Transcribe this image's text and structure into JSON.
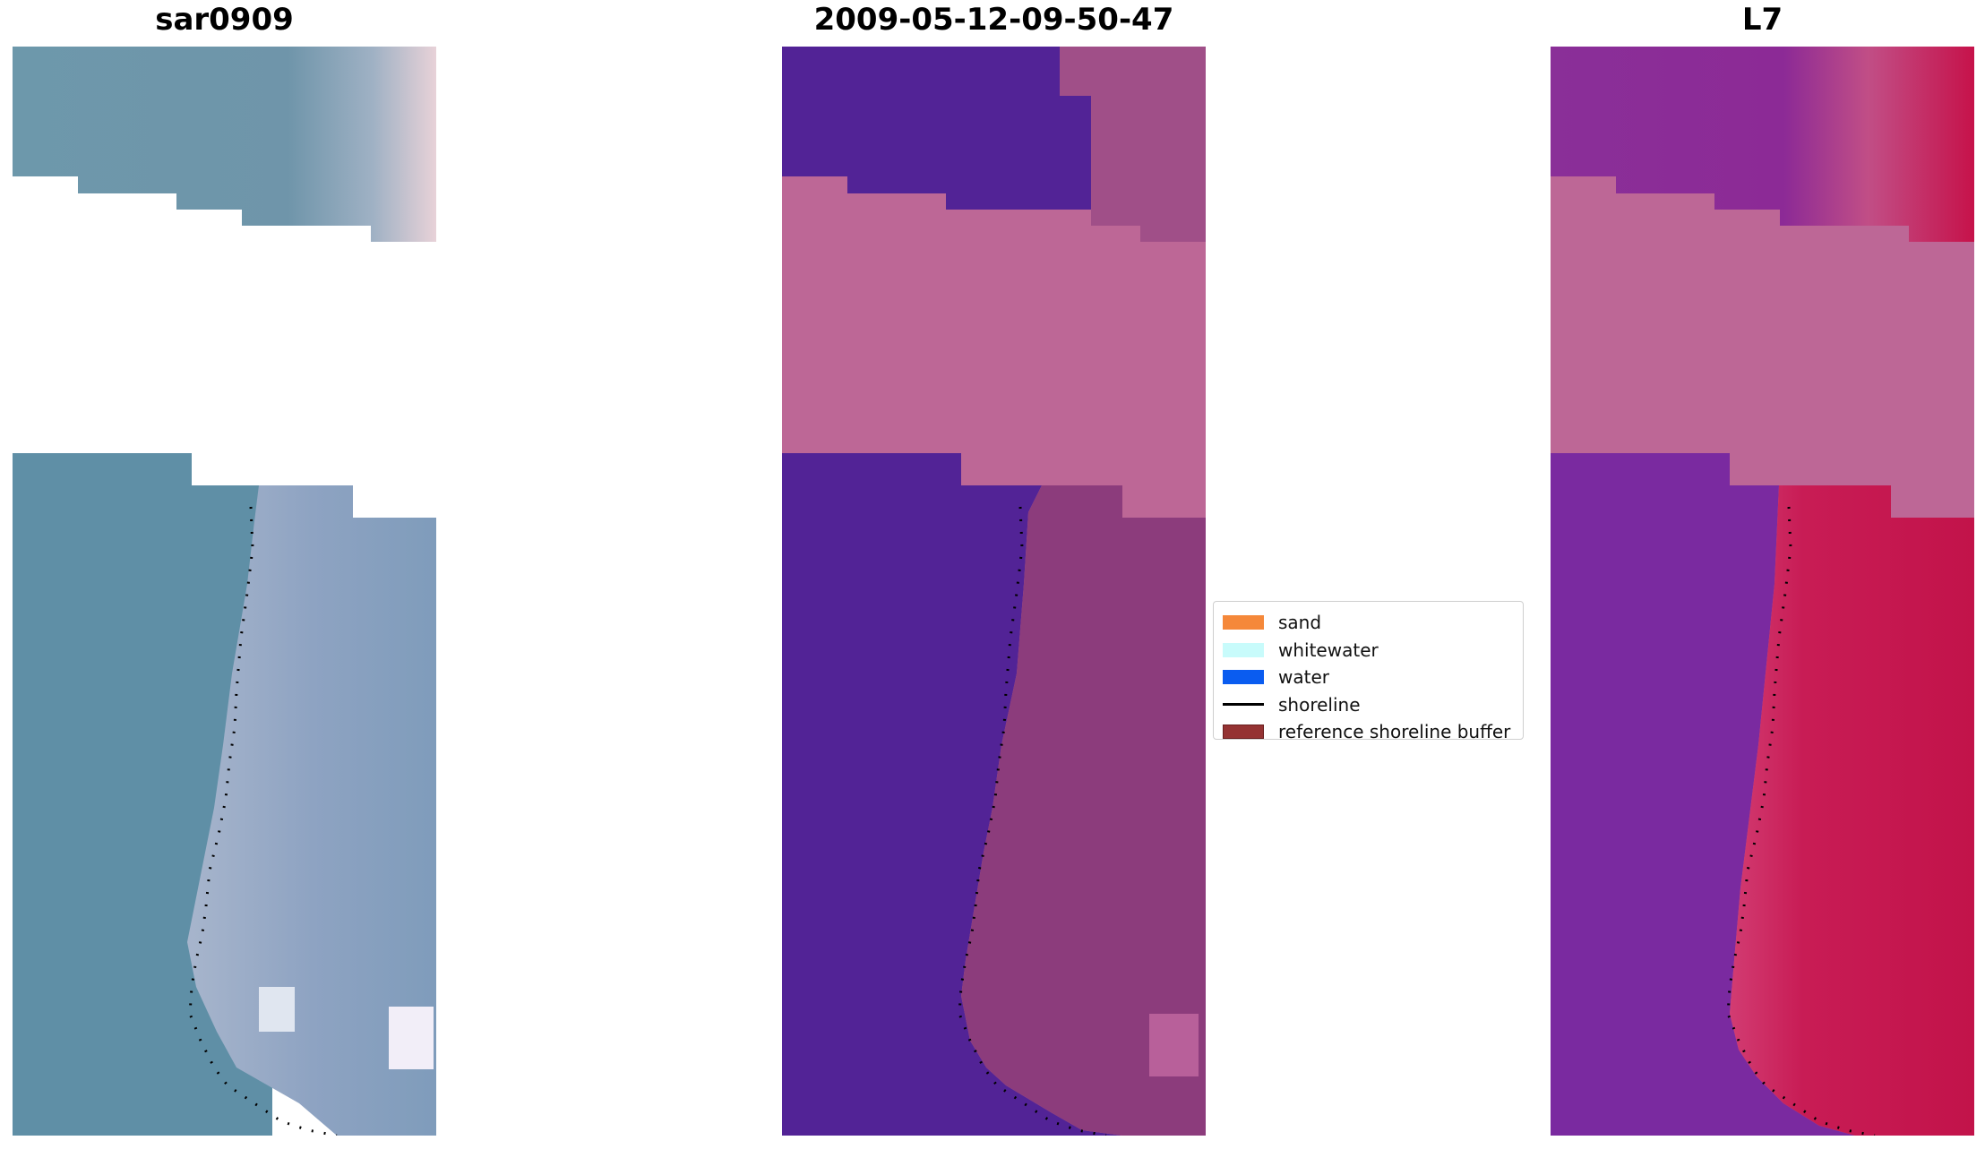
{
  "panels": {
    "left": {
      "title": "sar0909"
    },
    "center": {
      "title": "2009-05-12-09-50-47"
    },
    "right": {
      "title": "L7"
    }
  },
  "legend": {
    "items": [
      {
        "label": "sand",
        "color": "#f5883a"
      },
      {
        "label": "whitewater",
        "color": "#c8fbfb"
      },
      {
        "label": "water",
        "color": "#0a5cf0"
      },
      {
        "label": "shoreline",
        "color": "#000000"
      },
      {
        "label": "reference shoreline buffer",
        "color": "#953333"
      }
    ]
  },
  "colors": {
    "nodata_pink": "#bd6796",
    "classified_water": "#522396",
    "classified_land": "#8c3c7c",
    "rgb_water": "#5e8ea6",
    "rgb_land": "#a9b2cc",
    "nir_water": "#7a2aa0",
    "nir_land": "#c2184a",
    "shoreline": "#000000"
  }
}
